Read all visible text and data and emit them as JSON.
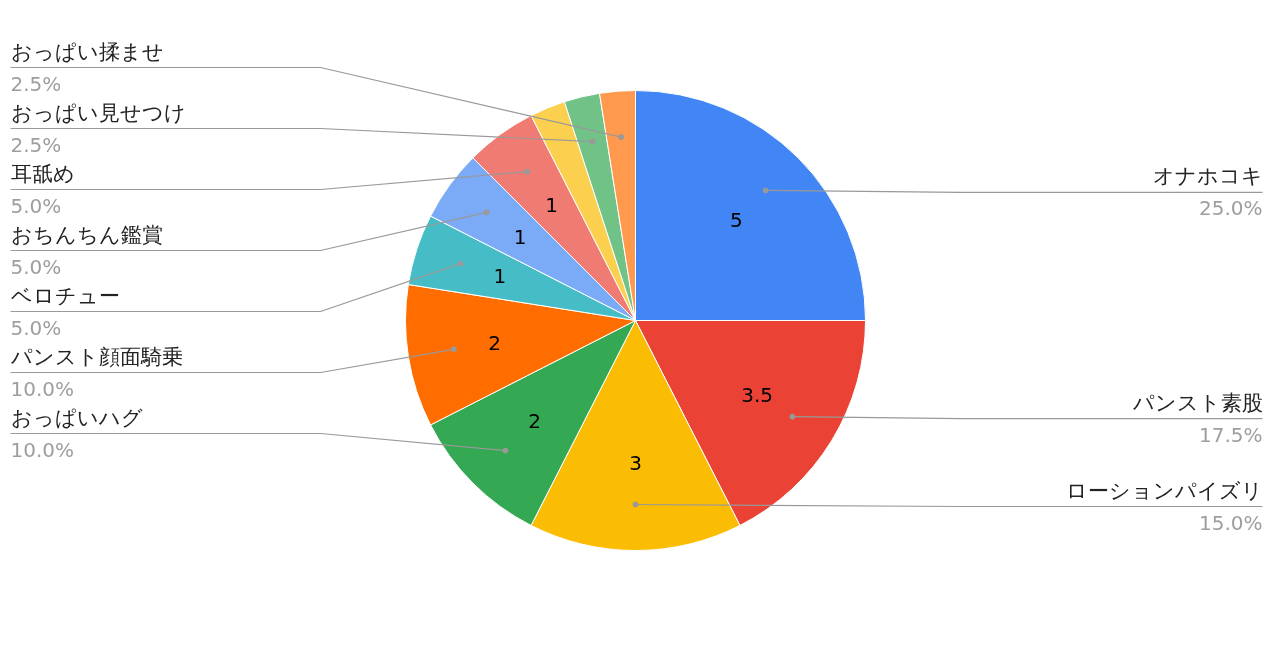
{
  "chart_data": {
    "type": "pie",
    "categories": [
      "オナホコキ",
      "パンスト素股",
      "ローションパイズリ",
      "おっぱいハグ",
      "パンスト顔面騎乗",
      "ベロチュー",
      "おちんちん鑑賞",
      "耳舐め",
      null,
      "おっぱい見せつけ",
      "おっぱい揉ませ"
    ],
    "values": [
      5,
      3.5,
      3,
      2,
      2,
      1,
      1,
      1,
      0.5,
      0.5,
      0.5
    ],
    "value_labels": [
      "5",
      "3.5",
      "3",
      "2",
      "2",
      "1",
      "1",
      "1",
      null,
      null,
      null
    ],
    "colors": [
      "#4285f4",
      "#ea4335",
      "#fbbc04",
      "#34a853",
      "#ff6d01",
      "#46bdc6",
      "#7baaf7",
      "#f07b72",
      "#fcd04f",
      "#71c287",
      "#ff994d"
    ],
    "annotations": [
      "25.0%",
      "17.5%",
      "15.0%",
      "10.0%",
      "10.0%",
      "5.0%",
      "5.0%",
      "5.0%",
      "2.5%",
      "2.5%"
    ],
    "legend": false
  }
}
